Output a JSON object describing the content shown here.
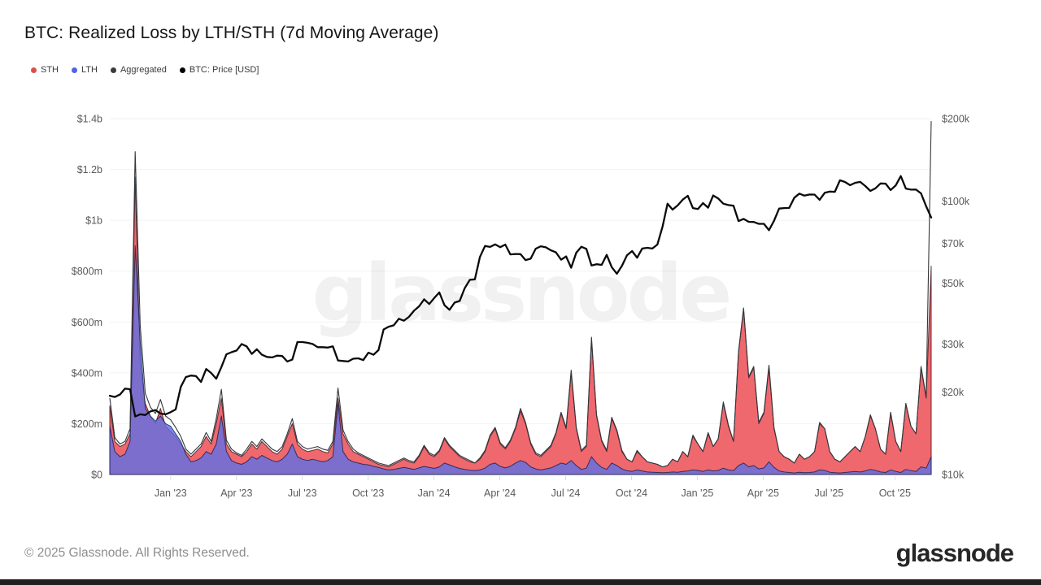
{
  "header": {
    "title": "BTC: Realized Loss by LTH/STH (7d Moving Average)"
  },
  "legend": {
    "items": [
      {
        "label": "STH",
        "color": "#d94f4f"
      },
      {
        "label": "LTH",
        "color": "#4f63e6"
      },
      {
        "label": "Aggregated",
        "color": "#3a3a3a"
      },
      {
        "label": "BTC: Price [USD]",
        "color": "#000000"
      }
    ]
  },
  "watermark": {
    "text": "glassnode",
    "color_rgba": "rgba(0,0,0,0.055)"
  },
  "footer": {
    "copyright": "© 2025 Glassnode. All Rights Reserved.",
    "logo_text": "glassnode"
  },
  "chart_data": {
    "type": "area",
    "title": "BTC: Realized Loss by LTH/STH (7d Moving Average)",
    "x_range_decimal_years": [
      2022.769,
      2025.888
    ],
    "x_ticks": [
      {
        "label": "Jan '23",
        "value": 2023.0
      },
      {
        "label": "Apr '23",
        "value": 2023.25
      },
      {
        "label": "Jul '23",
        "value": 2023.5
      },
      {
        "label": "Oct '23",
        "value": 2023.75
      },
      {
        "label": "Jan '24",
        "value": 2024.0
      },
      {
        "label": "Apr '24",
        "value": 2024.25
      },
      {
        "label": "Jul '24",
        "value": 2024.5
      },
      {
        "label": "Oct '24",
        "value": 2024.75
      },
      {
        "label": "Jan '25",
        "value": 2025.0
      },
      {
        "label": "Apr '25",
        "value": 2025.25
      },
      {
        "label": "Jul '25",
        "value": 2025.5
      },
      {
        "label": "Oct '25",
        "value": 2025.75
      }
    ],
    "left_axis": {
      "title": "Realized Loss (USD, millions)",
      "scale": "linear",
      "range_musd": [
        0,
        1400
      ],
      "ticks": [
        {
          "v": 0,
          "label": "$0"
        },
        {
          "v": 200,
          "label": "$200m"
        },
        {
          "v": 400,
          "label": "$400m"
        },
        {
          "v": 600,
          "label": "$600m"
        },
        {
          "v": 800,
          "label": "$800m"
        },
        {
          "v": 1000,
          "label": "$1b"
        },
        {
          "v": 1200,
          "label": "$1.2b"
        },
        {
          "v": 1400,
          "label": "$1.4b"
        }
      ]
    },
    "right_axis": {
      "title": "BTC Price (USD, thousands)",
      "scale": "log",
      "range_kusd": [
        10,
        200
      ],
      "ticks": [
        {
          "v": 10,
          "label": "$10k"
        },
        {
          "v": 20,
          "label": "$20k"
        },
        {
          "v": 30,
          "label": "$30k"
        },
        {
          "v": 50,
          "label": "$50k"
        },
        {
          "v": 70,
          "label": "$70k"
        },
        {
          "v": 100,
          "label": "$100k"
        },
        {
          "v": 200,
          "label": "$200k"
        }
      ]
    },
    "sampling": "weekly points, Oct 2022 through Nov 2025, values read from chart",
    "series": {
      "sth": {
        "label": "STH",
        "unit": "million USD",
        "color": "#ee5b62",
        "values": [
          270,
          130,
          110,
          120,
          160,
          1170,
          430,
          280,
          230,
          200,
          260,
          190,
          170,
          150,
          120,
          90,
          70,
          90,
          110,
          150,
          120,
          200,
          300,
          120,
          90,
          80,
          70,
          90,
          120,
          100,
          130,
          110,
          90,
          80,
          100,
          150,
          200,
          120,
          100,
          90,
          95,
          100,
          90,
          85,
          120,
          300,
          160,
          120,
          90,
          80,
          70,
          60,
          50,
          40,
          35,
          30,
          40,
          50,
          60,
          50,
          45,
          70,
          110,
          80,
          70,
          90,
          140,
          110,
          90,
          70,
          60,
          50,
          45,
          60,
          90,
          150,
          180,
          120,
          100,
          130,
          180,
          250,
          200,
          120,
          80,
          70,
          90,
          110,
          160,
          240,
          180,
          400,
          180,
          90,
          110,
          530,
          230,
          130,
          90,
          220,
          170,
          90,
          60,
          50,
          90,
          70,
          50,
          45,
          40,
          30,
          35,
          60,
          50,
          90,
          70,
          150,
          120,
          90,
          160,
          110,
          140,
          280,
          190,
          130,
          480,
          650,
          380,
          420,
          200,
          240,
          420,
          180,
          90,
          70,
          60,
          45,
          80,
          60,
          70,
          90,
          200,
          180,
          90,
          60,
          50,
          70,
          90,
          110,
          90,
          150,
          230,
          180,
          100,
          80,
          240,
          130,
          90,
          275,
          190,
          160,
          420,
          300,
          820
        ]
      },
      "lth": {
        "label": "LTH",
        "unit": "million USD",
        "color": "#5f6fe3",
        "values": [
          190,
          90,
          70,
          80,
          130,
          900,
          520,
          260,
          230,
          210,
          230,
          200,
          190,
          160,
          130,
          80,
          50,
          55,
          65,
          90,
          80,
          120,
          230,
          90,
          55,
          45,
          40,
          50,
          70,
          60,
          75,
          65,
          55,
          50,
          60,
          80,
          120,
          70,
          60,
          55,
          60,
          55,
          50,
          55,
          70,
          280,
          90,
          60,
          50,
          45,
          40,
          38,
          32,
          28,
          22,
          18,
          20,
          24,
          28,
          24,
          20,
          26,
          32,
          28,
          24,
          30,
          45,
          38,
          30,
          24,
          20,
          17,
          15,
          18,
          25,
          40,
          45,
          32,
          26,
          32,
          45,
          55,
          48,
          30,
          22,
          18,
          22,
          26,
          35,
          45,
          40,
          55,
          35,
          20,
          25,
          70,
          45,
          28,
          20,
          45,
          35,
          22,
          15,
          12,
          18,
          14,
          10,
          9,
          8,
          7,
          8,
          10,
          9,
          12,
          14,
          18,
          16,
          12,
          18,
          14,
          16,
          25,
          18,
          15,
          35,
          45,
          30,
          35,
          22,
          26,
          50,
          28,
          14,
          10,
          8,
          6,
          9,
          7,
          8,
          10,
          18,
          16,
          9,
          7,
          6,
          8,
          10,
          12,
          10,
          14,
          20,
          16,
          10,
          8,
          18,
          12,
          8,
          20,
          15,
          12,
          30,
          25,
          70
        ]
      },
      "aggregated": {
        "label": "Aggregated",
        "unit": "million USD",
        "color": "#33373c",
        "values": [
          300,
          145,
          120,
          130,
          180,
          1270,
          585,
          320,
          265,
          240,
          295,
          230,
          215,
          185,
          150,
          100,
          80,
          100,
          120,
          165,
          130,
          220,
          335,
          135,
          100,
          85,
          75,
          100,
          130,
          110,
          140,
          120,
          100,
          90,
          110,
          160,
          220,
          130,
          110,
          100,
          105,
          110,
          100,
          95,
          130,
          340,
          175,
          130,
          100,
          85,
          75,
          65,
          55,
          45,
          40,
          35,
          45,
          55,
          65,
          55,
          50,
          75,
          115,
          85,
          75,
          95,
          145,
          115,
          95,
          75,
          65,
          55,
          45,
          65,
          95,
          155,
          185,
          125,
          105,
          135,
          185,
          260,
          205,
          125,
          85,
          75,
          95,
          115,
          165,
          245,
          185,
          410,
          185,
          95,
          115,
          540,
          235,
          135,
          95,
          225,
          175,
          95,
          60,
          50,
          95,
          70,
          50,
          45,
          40,
          30,
          35,
          60,
          50,
          90,
          70,
          155,
          120,
          90,
          165,
          110,
          140,
          285,
          195,
          130,
          485,
          655,
          385,
          425,
          205,
          245,
          430,
          185,
          90,
          70,
          60,
          45,
          80,
          60,
          70,
          90,
          205,
          180,
          90,
          60,
          50,
          70,
          90,
          110,
          90,
          150,
          235,
          180,
          100,
          80,
          245,
          130,
          90,
          280,
          190,
          160,
          425,
          305,
          1390
        ]
      },
      "price": {
        "label": "BTC: Price [USD]",
        "unit": "thousand USD",
        "axis": "right",
        "color": "#0a0a0a",
        "values": [
          19.4,
          19.2,
          19.6,
          20.6,
          20.5,
          16.3,
          16.6,
          16.5,
          17.0,
          17.2,
          16.7,
          16.6,
          16.9,
          17.3,
          20.9,
          22.7,
          23.0,
          22.9,
          21.8,
          24.3,
          23.5,
          22.4,
          24.7,
          27.5,
          28.0,
          28.4,
          30.0,
          29.4,
          27.6,
          28.7,
          27.4,
          26.9,
          26.8,
          27.2,
          27.1,
          25.9,
          26.3,
          30.5,
          30.5,
          30.3,
          30.0,
          29.2,
          29.2,
          29.1,
          29.4,
          26.1,
          26.0,
          25.9,
          26.5,
          26.6,
          26.2,
          27.9,
          27.4,
          28.5,
          33.9,
          34.7,
          35.1,
          37.1,
          36.5,
          37.7,
          39.7,
          41.2,
          43.7,
          42.0,
          44.2,
          46.3,
          41.6,
          40.0,
          42.5,
          43.1,
          48.0,
          51.5,
          51.7,
          62.4,
          68.5,
          67.9,
          69.4,
          67.8,
          69.3,
          63.8,
          64.0,
          63.9,
          60.8,
          61.5,
          66.9,
          68.3,
          67.7,
          66.0,
          64.9,
          61.0,
          62.7,
          57.0,
          64.7,
          68.0,
          66.8,
          58.1,
          58.7,
          58.4,
          63.5,
          57.3,
          54.2,
          57.9,
          63.3,
          65.6,
          62.0,
          67.0,
          67.4,
          67.0,
          69.3,
          80.4,
          97.7,
          93.0,
          96.4,
          101.1,
          104.4,
          94.2,
          93.5,
          98.2,
          94.5,
          104.7,
          102.1,
          97.7,
          96.6,
          96.1,
          84.4,
          86.0,
          83.9,
          83.8,
          82.5,
          82.5,
          78.2,
          84.6,
          93.8,
          94.2,
          94.3,
          102.8,
          106.4,
          104.6,
          105.6,
          105.5,
          101.0,
          107.1,
          108.2,
          108.0,
          119.0,
          117.3,
          114.2,
          116.5,
          117.4,
          113.4,
          108.8,
          111.2,
          115.9,
          115.7,
          109.6,
          114.0,
          123.3,
          111.0,
          110.0,
          110.1,
          106.6,
          95.6,
          87.0
        ]
      }
    }
  }
}
